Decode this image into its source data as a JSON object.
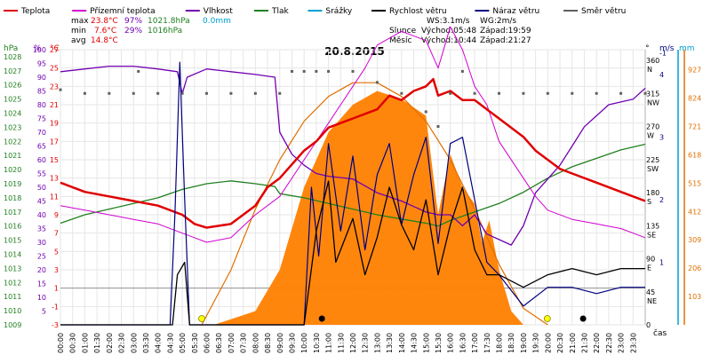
{
  "chart_data": {
    "type": "line",
    "title": "20.8.2015",
    "legend": [
      {
        "label": "Teplota",
        "color": "#e00000"
      },
      {
        "label": "Přízemní teplota",
        "color": "#d000d0"
      },
      {
        "label": "Vlhkost",
        "color": "#7000b0"
      },
      {
        "label": "Tlak",
        "color": "#208020"
      },
      {
        "label": "Srážky",
        "color": "#00a0d0"
      },
      {
        "label": "Rychlost větru",
        "color": "#000000"
      },
      {
        "label": "Náraz větru",
        "color": "#000080"
      },
      {
        "label": "Směr větru",
        "color": "#606060"
      }
    ],
    "stats": {
      "max_label": "max",
      "max_temp": "23.8°C",
      "max_hum": "97%",
      "max_press": "1021.8hPa",
      "max_rain": "0.0mm",
      "min_label": "min",
      "min_temp": "7.6°C",
      "min_hum": "29%",
      "min_press": "1016hPa",
      "avg_label": "avg",
      "avg_temp": "14.8°C"
    },
    "sun": {
      "ws": "WS:3.1m/s",
      "wg": "WG:2m/s",
      "sun_label": "Slunce",
      "sunrise": "Východ:05:48",
      "sunset": "Západ:19:59",
      "moon_label": "Měsíc",
      "moonrise": "Východ:10:44",
      "moonset": "Západ:21:27"
    },
    "axes": {
      "hpa_label": "hPa",
      "pct_label": "%",
      "c_label": "°C",
      "dir_label": "°",
      "ms_label": "m/s",
      "mm_label": "mm",
      "cas_label": "čas",
      "hpa_ticks": [
        "1028",
        "1027",
        "1026",
        "1025",
        "1024",
        "1023",
        "1022",
        "1021",
        "1020",
        "1019",
        "1018",
        "1017",
        "1016",
        "1015",
        "1014",
        "1013",
        "1012",
        "1011",
        "1010",
        "1009"
      ],
      "pct_ticks": [
        "100",
        "95",
        "90",
        "85",
        "80",
        "75",
        "70",
        "65",
        "60",
        "55",
        "50",
        "45",
        "40",
        "35",
        "30",
        "25",
        "20",
        "15",
        "10",
        "5"
      ],
      "c_ticks": [
        "27",
        "25",
        "23",
        "21",
        "19",
        "17",
        "15",
        "13",
        "11",
        "9",
        "7",
        "5",
        "3",
        "1",
        "-1",
        "-3"
      ],
      "dir_ticks": [
        "360",
        "315",
        "270",
        "225",
        "180",
        "135",
        "90",
        "45",
        "0"
      ],
      "dir_names": [
        "N",
        "NW",
        "W",
        "SW",
        "S",
        "SE",
        "E",
        "NE",
        ""
      ],
      "ms_ticks": [
        "-1",
        "4",
        "3",
        "2",
        "1"
      ],
      "rad_ticks": [
        "927",
        "824",
        "721",
        "618",
        "515",
        "412",
        "309",
        "206",
        "103"
      ],
      "time_ticks": [
        "00:00",
        "00:30",
        "01:00",
        "01:30",
        "02:00",
        "02:30",
        "03:00",
        "03:30",
        "04:00",
        "04:30",
        "05:00",
        "05:30",
        "06:00",
        "06:30",
        "07:00",
        "07:30",
        "08:00",
        "08:30",
        "09:00",
        "09:30",
        "10:00",
        "10:30",
        "11:00",
        "11:30",
        "12:00",
        "12:30",
        "13:00",
        "13:30",
        "14:00",
        "14:30",
        "15:00",
        "15:30",
        "16:00",
        "16:30",
        "17:00",
        "17:30",
        "18:00",
        "18:30",
        "19:00",
        "19:30",
        "20:00",
        "20:30",
        "21:00",
        "21:30",
        "22:00",
        "22:30",
        "23:00",
        "23:30"
      ]
    },
    "temperature": [
      [
        0,
        12.5
      ],
      [
        1,
        11.5
      ],
      [
        2,
        11
      ],
      [
        3,
        10.5
      ],
      [
        4,
        10
      ],
      [
        5,
        9
      ],
      [
        5.5,
        8
      ],
      [
        6,
        7.6
      ],
      [
        7,
        8
      ],
      [
        7.5,
        9
      ],
      [
        8,
        10
      ],
      [
        8.5,
        12
      ],
      [
        9,
        13
      ],
      [
        9.5,
        14.5
      ],
      [
        10,
        16
      ],
      [
        10.5,
        17
      ],
      [
        11,
        18.5
      ],
      [
        12,
        19.5
      ],
      [
        13,
        20.5
      ],
      [
        13.5,
        22
      ],
      [
        14,
        21.5
      ],
      [
        14.5,
        22.5
      ],
      [
        15,
        23
      ],
      [
        15.3,
        23.8
      ],
      [
        15.5,
        22
      ],
      [
        16,
        22.5
      ],
      [
        16.5,
        21.5
      ],
      [
        17,
        21.5
      ],
      [
        17.5,
        20.5
      ],
      [
        18,
        19.5
      ],
      [
        19,
        17.5
      ],
      [
        19.5,
        16
      ],
      [
        20,
        15
      ],
      [
        20.5,
        14
      ],
      [
        21,
        13.5
      ],
      [
        22,
        12.5
      ],
      [
        23,
        11.5
      ],
      [
        24,
        10.5
      ]
    ],
    "ground_temp": [
      [
        0,
        10
      ],
      [
        1,
        9.5
      ],
      [
        2,
        9
      ],
      [
        3,
        8.5
      ],
      [
        4,
        8
      ],
      [
        5,
        7
      ],
      [
        5.5,
        6.5
      ],
      [
        6,
        6
      ],
      [
        7,
        6.5
      ],
      [
        8,
        9
      ],
      [
        9,
        11
      ],
      [
        10,
        15
      ],
      [
        11,
        19
      ],
      [
        12,
        23
      ],
      [
        12.5,
        25
      ],
      [
        13,
        27.5
      ],
      [
        14,
        29
      ],
      [
        15,
        28
      ],
      [
        15.5,
        25
      ],
      [
        16,
        29.5
      ],
      [
        16.5,
        27
      ],
      [
        17,
        23
      ],
      [
        17.5,
        21
      ],
      [
        18,
        17
      ],
      [
        19,
        13
      ],
      [
        19.5,
        11
      ],
      [
        20,
        9.5
      ],
      [
        21,
        8.5
      ],
      [
        22,
        8
      ],
      [
        23,
        7.5
      ],
      [
        24,
        6.5
      ]
    ],
    "humidity": [
      [
        0,
        92
      ],
      [
        1,
        93
      ],
      [
        2,
        94
      ],
      [
        3,
        94
      ],
      [
        4,
        93
      ],
      [
        4.8,
        92
      ],
      [
        5,
        84
      ],
      [
        5.2,
        90
      ],
      [
        6,
        93
      ],
      [
        7,
        92
      ],
      [
        8,
        91
      ],
      [
        8.8,
        90
      ],
      [
        9,
        70
      ],
      [
        9.5,
        62
      ],
      [
        10,
        58
      ],
      [
        10.5,
        55
      ],
      [
        11,
        54
      ],
      [
        12,
        53
      ],
      [
        13,
        48
      ],
      [
        14,
        45
      ],
      [
        14.5,
        43
      ],
      [
        15,
        41
      ],
      [
        15.5,
        40
      ],
      [
        16,
        40
      ],
      [
        16.5,
        36
      ],
      [
        17,
        40
      ],
      [
        17.5,
        33
      ],
      [
        18,
        31
      ],
      [
        18.5,
        29
      ],
      [
        19,
        36
      ],
      [
        19.5,
        48
      ],
      [
        20,
        53
      ],
      [
        20.5,
        58
      ],
      [
        21,
        65
      ],
      [
        21.5,
        72
      ],
      [
        22,
        76
      ],
      [
        22.5,
        80
      ],
      [
        23,
        81
      ],
      [
        23.5,
        82
      ],
      [
        24,
        86
      ]
    ],
    "pressure": [
      [
        0,
        1016.2
      ],
      [
        1,
        1016.8
      ],
      [
        2,
        1017.2
      ],
      [
        3,
        1017.6
      ],
      [
        4,
        1018
      ],
      [
        5,
        1018.6
      ],
      [
        6,
        1019
      ],
      [
        7,
        1019.2
      ],
      [
        8,
        1019
      ],
      [
        8.8,
        1018.8
      ],
      [
        9,
        1018.3
      ],
      [
        10,
        1018
      ],
      [
        11,
        1017.6
      ],
      [
        12,
        1017.2
      ],
      [
        13,
        1016.8
      ],
      [
        14,
        1016.5
      ],
      [
        15,
        1016.2
      ],
      [
        15.5,
        1016
      ],
      [
        16,
        1016.4
      ],
      [
        17,
        1017
      ],
      [
        18,
        1017.6
      ],
      [
        19,
        1018.4
      ],
      [
        20,
        1019.4
      ],
      [
        21,
        1020.2
      ],
      [
        22,
        1020.8
      ],
      [
        23,
        1021.4
      ],
      [
        24,
        1021.8
      ]
    ],
    "wind_speed": [
      [
        0,
        0
      ],
      [
        4.6,
        0
      ],
      [
        4.8,
        0.8
      ],
      [
        5.1,
        1.0
      ],
      [
        5.3,
        0
      ],
      [
        10,
        0
      ],
      [
        10.5,
        1.5
      ],
      [
        11,
        2.3
      ],
      [
        11.3,
        1.0
      ],
      [
        12,
        1.7
      ],
      [
        12.5,
        0.8
      ],
      [
        13,
        1.4
      ],
      [
        13.5,
        2.2
      ],
      [
        14,
        1.6
      ],
      [
        14.5,
        1.2
      ],
      [
        15,
        2.0
      ],
      [
        15.5,
        0.8
      ],
      [
        16,
        1.6
      ],
      [
        16.5,
        2.2
      ],
      [
        17,
        1.2
      ],
      [
        17.5,
        0.8
      ],
      [
        18,
        0.8
      ],
      [
        19,
        0.6
      ],
      [
        20,
        0.8
      ],
      [
        21,
        0.9
      ],
      [
        22,
        0.8
      ],
      [
        23,
        0.9
      ],
      [
        24,
        0.9
      ]
    ],
    "wind_gust": [
      [
        0,
        0
      ],
      [
        4.5,
        0
      ],
      [
        4.7,
        1.8
      ],
      [
        4.9,
        4.2
      ],
      [
        5.1,
        2.0
      ],
      [
        5.3,
        0
      ],
      [
        10,
        0
      ],
      [
        10.3,
        2.2
      ],
      [
        10.6,
        1.1
      ],
      [
        11,
        2.9
      ],
      [
        11.5,
        1.5
      ],
      [
        12,
        2.7
      ],
      [
        12.5,
        1.2
      ],
      [
        13,
        2.4
      ],
      [
        13.5,
        2.9
      ],
      [
        14,
        1.6
      ],
      [
        14.5,
        2.4
      ],
      [
        15,
        3.0
      ],
      [
        15.5,
        1.3
      ],
      [
        16,
        2.9
      ],
      [
        16.5,
        3.0
      ],
      [
        17,
        2.0
      ],
      [
        17.5,
        1.0
      ],
      [
        18,
        0.8
      ],
      [
        19,
        0.3
      ],
      [
        20,
        0.6
      ],
      [
        21,
        0.6
      ],
      [
        22,
        0.5
      ],
      [
        23,
        0.6
      ],
      [
        24,
        0.6
      ]
    ],
    "wind_dir": [
      [
        0,
        320
      ],
      [
        1,
        315
      ],
      [
        2,
        315
      ],
      [
        3,
        315
      ],
      [
        3.2,
        345
      ],
      [
        4,
        315
      ],
      [
        5,
        315
      ],
      [
        6,
        315
      ],
      [
        7,
        315
      ],
      [
        8,
        315
      ],
      [
        9,
        315
      ],
      [
        9.5,
        345
      ],
      [
        10,
        345
      ],
      [
        10.5,
        345
      ],
      [
        11,
        345
      ],
      [
        12,
        345
      ],
      [
        13,
        330
      ],
      [
        14,
        315
      ],
      [
        15,
        290
      ],
      [
        15.5,
        270
      ],
      [
        16,
        315
      ],
      [
        16.5,
        345
      ],
      [
        17,
        315
      ],
      [
        18,
        315
      ],
      [
        19,
        315
      ],
      [
        20,
        315
      ],
      [
        21,
        315
      ],
      [
        22,
        315
      ],
      [
        23,
        315
      ],
      [
        24,
        315
      ]
    ],
    "radiation": [
      [
        6.3,
        0
      ],
      [
        8,
        50
      ],
      [
        9,
        200
      ],
      [
        10,
        500
      ],
      [
        11,
        700
      ],
      [
        12,
        800
      ],
      [
        13,
        850
      ],
      [
        14,
        820
      ],
      [
        15,
        760
      ],
      [
        15.5,
        400
      ],
      [
        16,
        620
      ],
      [
        16.5,
        500
      ],
      [
        17,
        440
      ],
      [
        17.3,
        300
      ],
      [
        17.6,
        380
      ],
      [
        18,
        200
      ],
      [
        18.5,
        50
      ],
      [
        19,
        0
      ]
    ],
    "solar_theory": [
      [
        5.8,
        0
      ],
      [
        7,
        200
      ],
      [
        8,
        420
      ],
      [
        9,
        600
      ],
      [
        10,
        740
      ],
      [
        11,
        830
      ],
      [
        12,
        880
      ],
      [
        13,
        880
      ],
      [
        14,
        830
      ],
      [
        15,
        740
      ],
      [
        16,
        600
      ],
      [
        17,
        420
      ],
      [
        18,
        220
      ],
      [
        19,
        60
      ],
      [
        20,
        0
      ]
    ]
  }
}
